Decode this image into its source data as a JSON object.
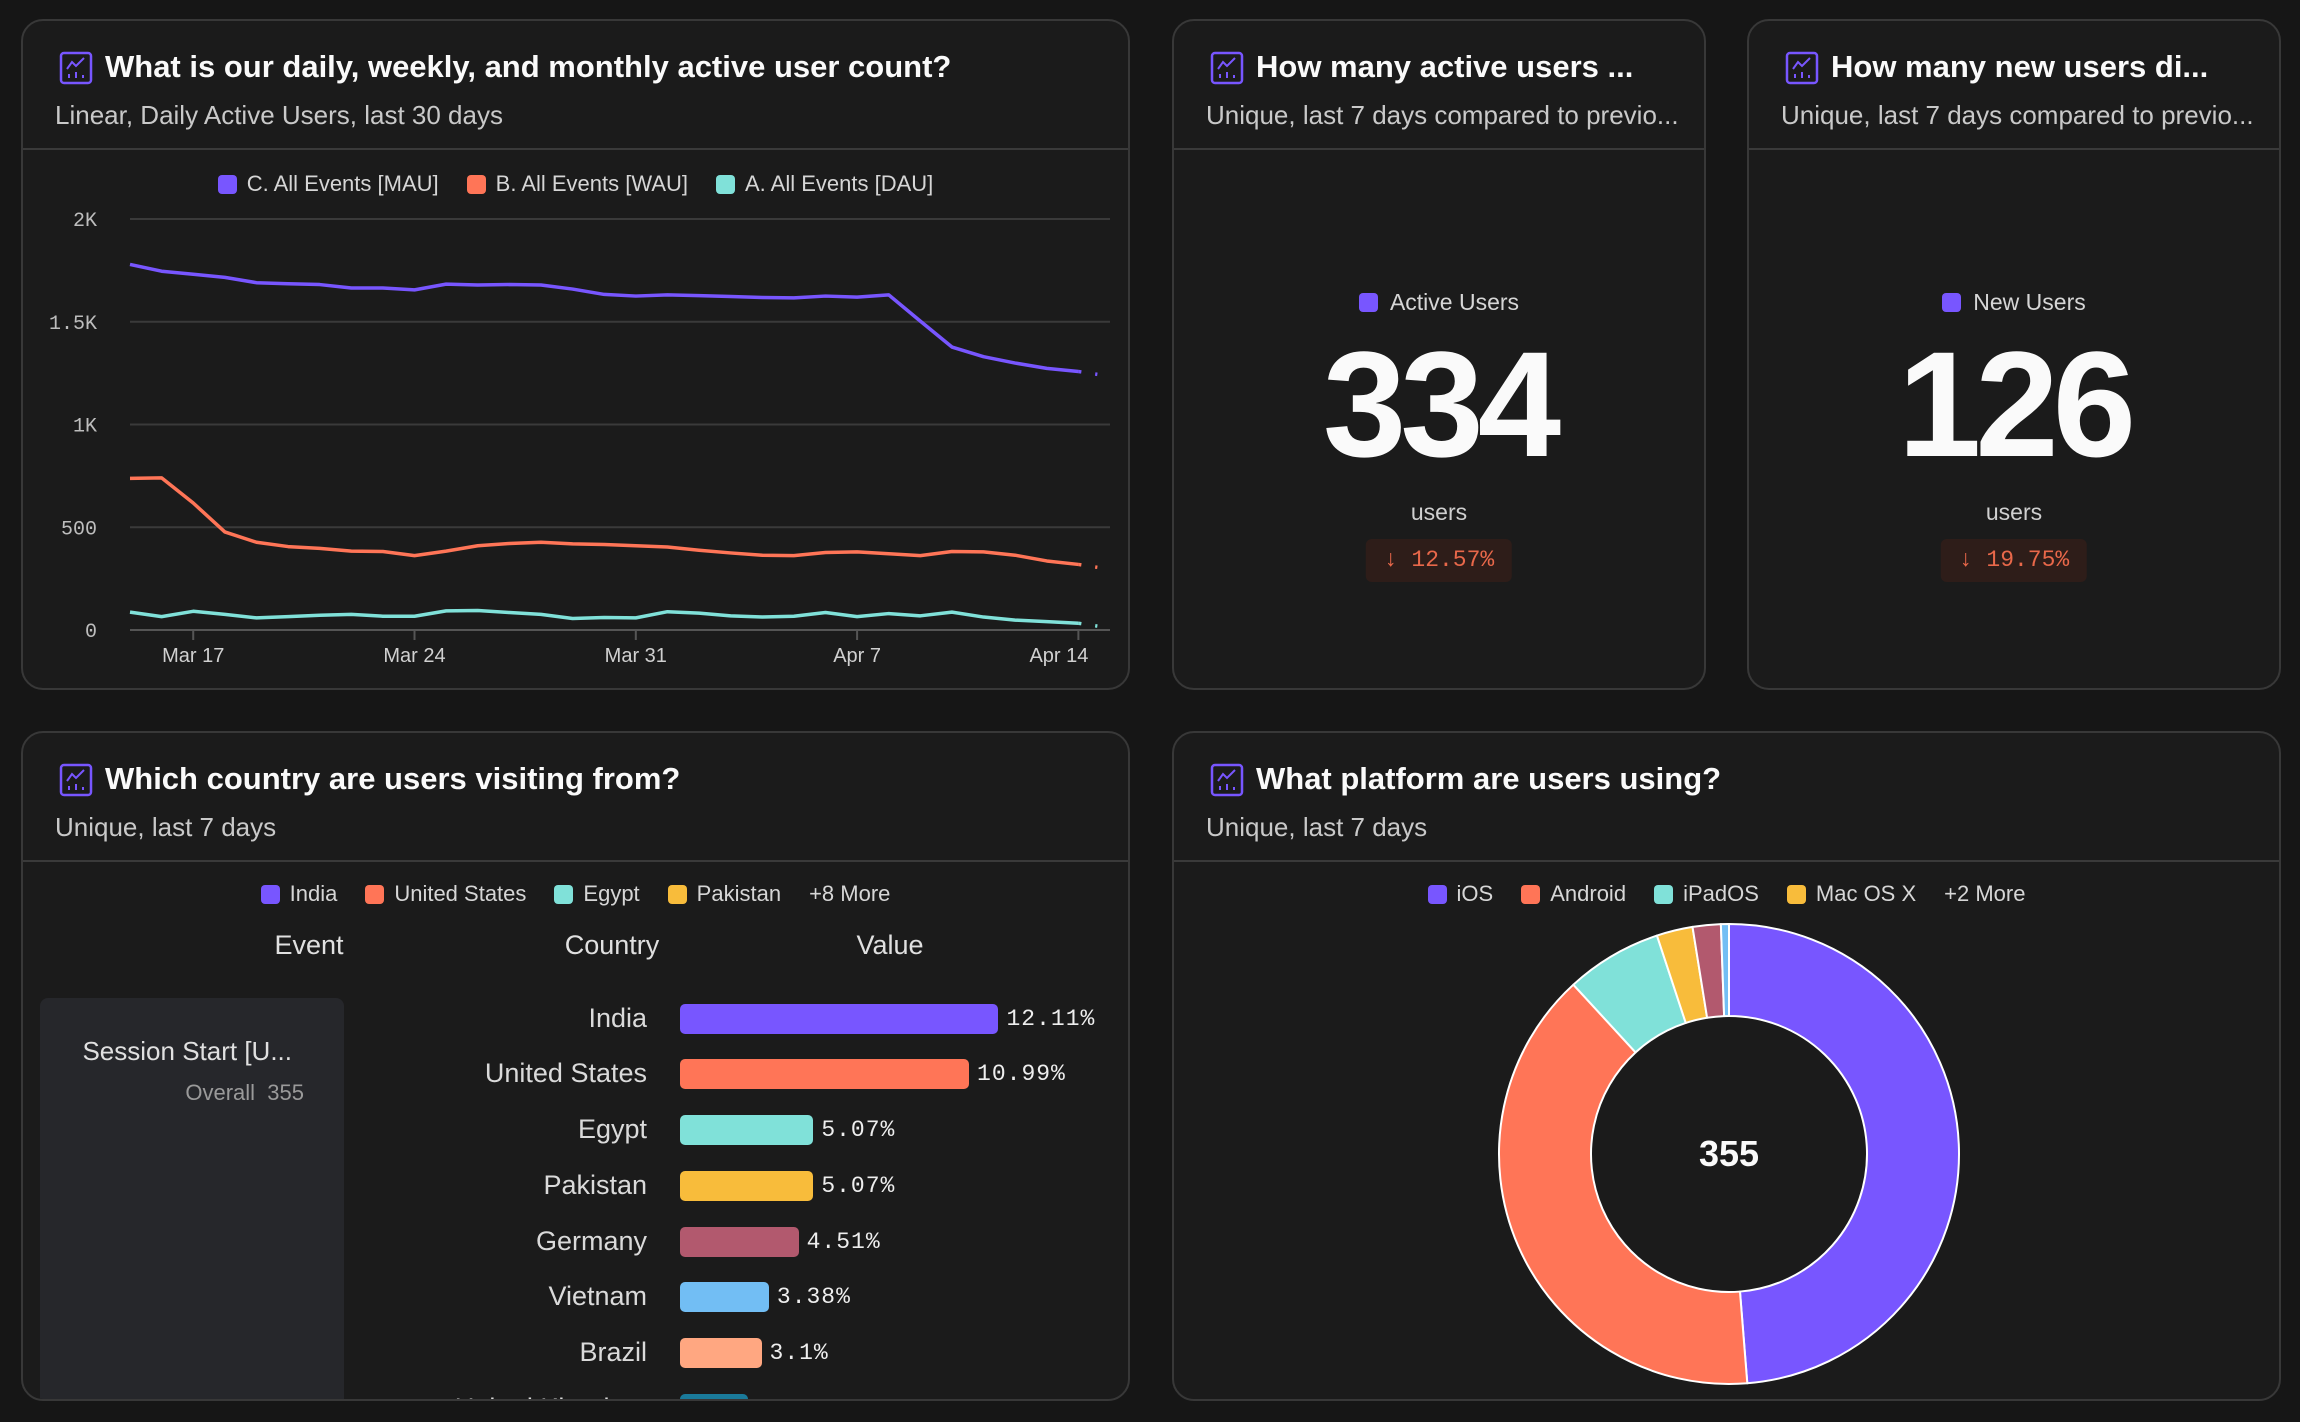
{
  "colors": {
    "purple": "#7856ff",
    "orange": "#ff7557",
    "teal": "#80e1d9",
    "yellow": "#f8bc3b",
    "pink": "#b2596e",
    "lightblue": "#72bef4",
    "peach": "#ffa781",
    "darkteal": "#1a7a9a",
    "negative": "#e8684a"
  },
  "cards": {
    "dau": {
      "icon": "line-chart-icon",
      "title": "What is our daily, weekly, and monthly active user count?",
      "subtitle": "Linear, Daily Active Users, last 30 days"
    },
    "active": {
      "icon": "line-chart-icon",
      "title": "How many active users ...",
      "subtitle": "Unique, last 7 days compared to previo...",
      "legend": "Active Users",
      "value": "334",
      "unit": "users",
      "delta": "12.57%",
      "delta_direction": "down"
    },
    "new": {
      "icon": "line-chart-icon",
      "title": "How many new users di...",
      "subtitle": "Unique, last 7 days compared to previo...",
      "legend": "New Users",
      "value": "126",
      "unit": "users",
      "delta": "19.75%",
      "delta_direction": "down"
    },
    "country": {
      "icon": "line-chart-icon",
      "title": "Which country are users visiting from?",
      "subtitle": "Unique, last 7 days",
      "legend": [
        "India",
        "United States",
        "Egypt",
        "Pakistan"
      ],
      "legend_more": "+8 More",
      "columns": [
        "Event",
        "Country",
        "Value"
      ],
      "event_name": "Session Start [U...",
      "event_overall_label": "Overall",
      "event_overall_value": "355"
    },
    "platform": {
      "icon": "line-chart-icon",
      "title": "What platform are users using?",
      "subtitle": "Unique, last 7 days",
      "legend": [
        "iOS",
        "Android",
        "iPadOS",
        "Mac OS X"
      ],
      "legend_more": "+2 More",
      "center_total": "355"
    }
  },
  "chart_data": [
    {
      "type": "line",
      "ylim": [
        0,
        2000
      ],
      "yticks": [
        "0",
        "500",
        "1K",
        "1.5K",
        "2K"
      ],
      "ytick_values": [
        0,
        500,
        1000,
        1500,
        2000
      ],
      "xticks": [
        "Mar 17",
        "Mar 24",
        "Mar 31",
        "Apr 7",
        "Apr 14"
      ],
      "x_start": "Mar 15",
      "x_end": "Apr 15",
      "grid": true,
      "legend_position": "top",
      "series": [
        {
          "name": "C. All Events [MAU]",
          "color": "#7856ff",
          "values": [
            1779,
            1746,
            1731,
            1716,
            1690,
            1685,
            1681,
            1664,
            1664,
            1655,
            1683,
            1679,
            1681,
            1679,
            1659,
            1633,
            1625,
            1631,
            1627,
            1623,
            1618,
            1616,
            1625,
            1620,
            1631,
            1503,
            1377,
            1330,
            1299,
            1273,
            1258
          ]
        },
        {
          "name": "B. All Events [WAU]",
          "color": "#ff7557",
          "values": [
            738,
            740,
            618,
            477,
            427,
            406,
            397,
            384,
            382,
            362,
            384,
            410,
            421,
            427,
            419,
            416,
            410,
            404,
            388,
            375,
            364,
            362,
            377,
            380,
            371,
            362,
            382,
            380,
            364,
            336,
            319
          ]
        },
        {
          "name": "A. All Events [DAU]",
          "color": "#80e1d9",
          "values": [
            87,
            65,
            91,
            76,
            59,
            65,
            72,
            76,
            67,
            67,
            93,
            95,
            85,
            76,
            56,
            61,
            59,
            89,
            82,
            69,
            63,
            67,
            85,
            65,
            80,
            69,
            87,
            63,
            48,
            41,
            33
          ]
        }
      ]
    },
    {
      "type": "bar",
      "orientation": "horizontal",
      "unit": "%",
      "categories": [
        "India",
        "United States",
        "Egypt",
        "Pakistan",
        "Germany",
        "Vietnam",
        "Brazil",
        "United Kingdom"
      ],
      "values": [
        12.11,
        10.99,
        5.07,
        5.07,
        4.51,
        3.38,
        3.1,
        2.57
      ],
      "labels": [
        "12.11%",
        "10.99%",
        "5.07%",
        "5.07%",
        "4.51%",
        "3.38%",
        "3.1%",
        ""
      ],
      "colors": [
        "#7856ff",
        "#ff7557",
        "#80e1d9",
        "#f8bc3b",
        "#b2596e",
        "#72bef4",
        "#ffa781",
        "#1a7a9a"
      ]
    },
    {
      "type": "pie",
      "donut": true,
      "total": 355,
      "slices": [
        {
          "name": "iOS",
          "value": 173,
          "color": "#7856ff"
        },
        {
          "name": "Android",
          "value": 140,
          "color": "#ff7557"
        },
        {
          "name": "iPadOS",
          "value": 24,
          "color": "#80e1d9"
        },
        {
          "name": "Mac OS X",
          "value": 9,
          "color": "#f8bc3b"
        },
        {
          "value": 7,
          "color": "#b2596e"
        },
        {
          "value": 2,
          "color": "#72bef4"
        }
      ]
    }
  ]
}
